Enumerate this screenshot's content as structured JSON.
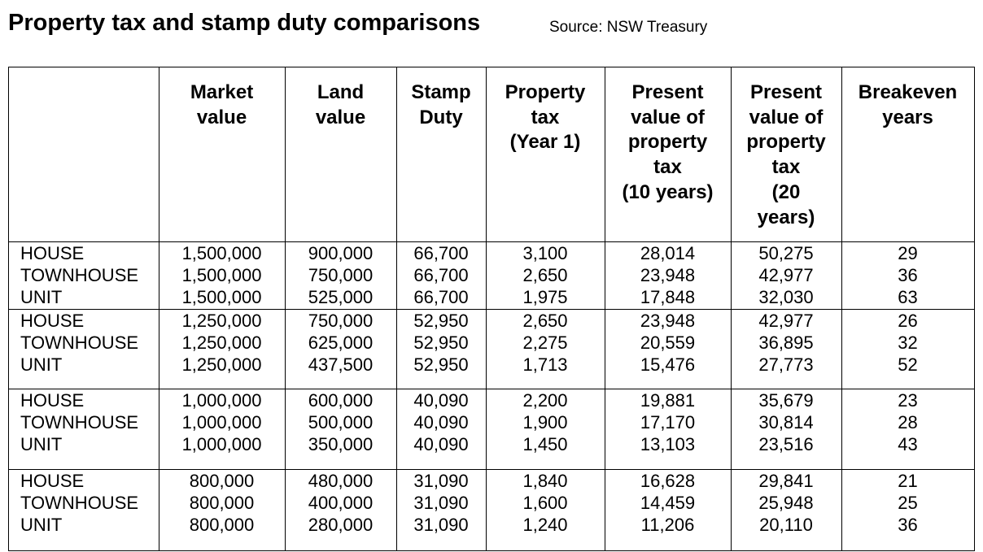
{
  "header": {
    "title": "Property tax and stamp duty comparisons",
    "source": "Source: NSW Treasury"
  },
  "table": {
    "columns": [
      [],
      [
        "Market",
        "value"
      ],
      [
        "Land",
        "value"
      ],
      [
        "Stamp",
        "Duty"
      ],
      [
        "Property",
        "tax",
        "(Year 1)"
      ],
      [
        "Present",
        "value of",
        "property",
        "tax",
        "(10 years)"
      ],
      [
        "Present",
        "value of",
        "property",
        "tax",
        "(20",
        "years)"
      ],
      [
        "Breakeven",
        "years"
      ]
    ],
    "groups": [
      {
        "rows": [
          [
            "HOUSE",
            "1,500,000",
            "900,000",
            "66,700",
            "3,100",
            "28,014",
            "50,275",
            "29"
          ],
          [
            "TOWNHOUSE",
            "1,500,000",
            "750,000",
            "66,700",
            "2,650",
            "23,948",
            "42,977",
            "36"
          ],
          [
            "UNIT",
            "1,500,000",
            "525,000",
            "66,700",
            "1,975",
            "17,848",
            "32,030",
            "63"
          ]
        ]
      },
      {
        "rows": [
          [
            "HOUSE",
            "1,250,000",
            "750,000",
            "52,950",
            "2,650",
            "23,948",
            "42,977",
            "26"
          ],
          [
            "TOWNHOUSE",
            "1,250,000",
            "625,000",
            "52,950",
            "2,275",
            "20,559",
            "36,895",
            "32"
          ],
          [
            "UNIT",
            "1,250,000",
            "437,500",
            "52,950",
            "1,713",
            "15,476",
            "27,773",
            "52"
          ]
        ]
      },
      {
        "rows": [
          [
            "HOUSE",
            "1,000,000",
            "600,000",
            "40,090",
            "2,200",
            "19,881",
            "35,679",
            "23"
          ],
          [
            "TOWNHOUSE",
            "1,000,000",
            "500,000",
            "40,090",
            "1,900",
            "17,170",
            "30,814",
            "28"
          ],
          [
            "UNIT",
            "1,000,000",
            "350,000",
            "40,090",
            "1,450",
            "13,103",
            "23,516",
            "43"
          ]
        ]
      },
      {
        "rows": [
          [
            "HOUSE",
            "800,000",
            "480,000",
            "31,090",
            "1,840",
            "16,628",
            "29,841",
            "21"
          ],
          [
            "TOWNHOUSE",
            "800,000",
            "400,000",
            "31,090",
            "1,600",
            "14,459",
            "25,948",
            "25"
          ],
          [
            "UNIT",
            "800,000",
            "280,000",
            "31,090",
            "1,240",
            "11,206",
            "20,110",
            "36"
          ]
        ]
      }
    ]
  }
}
